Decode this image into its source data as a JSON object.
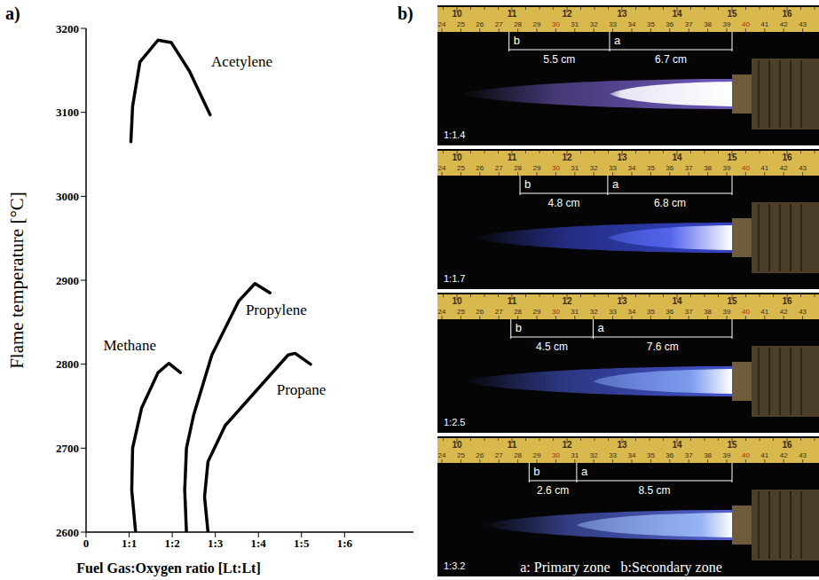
{
  "chart_data": {
    "type": "line",
    "title": "a)",
    "xlabel": "Fuel Gas:Oxygen ratio [Lt:Lt]",
    "ylabel": "Flame temperature [°C]",
    "xlim": [
      0,
      7.6
    ],
    "xticks": [
      0,
      {
        "value": 1,
        "label": "1:1"
      },
      {
        "value": 2,
        "label": "1:2"
      },
      {
        "value": 3,
        "label": "1:3"
      },
      {
        "value": 4,
        "label": "1:4"
      },
      {
        "value": 5,
        "label": "1:5"
      },
      {
        "value": 6,
        "label": "1:6"
      }
    ],
    "ylim": [
      2600,
      3200
    ],
    "yticks": [
      2600,
      2700,
      2800,
      2900,
      3000,
      3100,
      3200
    ],
    "grid": false,
    "series": [
      {
        "name": "Acetylene",
        "color": "#000000",
        "x": [
          1.04,
          1.08,
          1.25,
          1.67,
          1.98,
          2.4,
          2.88
        ],
        "values": [
          3065,
          3107,
          3160,
          3186,
          3183,
          3149,
          3097
        ]
      },
      {
        "name": "Methane",
        "color": "#000000",
        "x": [
          1.15,
          1.06,
          1.08,
          1.29,
          1.67,
          1.92,
          2.19
        ],
        "values": [
          2600,
          2650,
          2700,
          2748,
          2790,
          2801,
          2790
        ]
      },
      {
        "name": "Propylene",
        "color": "#000000",
        "x": [
          2.33,
          2.29,
          2.33,
          2.5,
          2.92,
          3.54,
          3.92,
          4.27
        ],
        "values": [
          2600,
          2650,
          2700,
          2740,
          2811,
          2875,
          2896,
          2885
        ]
      },
      {
        "name": "Propane",
        "color": "#000000",
        "x": [
          2.83,
          2.75,
          2.83,
          3.23,
          3.96,
          4.69,
          4.85,
          5.21
        ],
        "values": [
          2600,
          2642,
          2684,
          2727,
          2769,
          2811,
          2813,
          2800
        ]
      }
    ]
  },
  "photo_panel": {
    "title": "b)",
    "ruler": {
      "inch_ticks": [
        10,
        11,
        12,
        13,
        14,
        15,
        16
      ],
      "cm_ticks": [
        24,
        25,
        26,
        27,
        28,
        29,
        30,
        31,
        32,
        33,
        34,
        35,
        36,
        37,
        38,
        39,
        40,
        41,
        42,
        43
      ]
    },
    "markers": {
      "primary": "a",
      "secondary": "b"
    },
    "key": "a: Primary zone   b:Secondary zone",
    "flames": [
      {
        "ratio": "1:1.4",
        "secondary": {
          "value": 5.5,
          "label": "5.5 cm"
        },
        "primary": {
          "value": 6.7,
          "label": "6.7 cm"
        }
      },
      {
        "ratio": "1:1.7",
        "secondary": {
          "value": 4.8,
          "label": "4.8 cm"
        },
        "primary": {
          "value": 6.8,
          "label": "6.8 cm"
        }
      },
      {
        "ratio": "1:2.5",
        "secondary": {
          "value": 4.5,
          "label": "4.5 cm"
        },
        "primary": {
          "value": 7.6,
          "label": "7.6 cm"
        }
      },
      {
        "ratio": "1:3.2",
        "secondary": {
          "value": 2.6,
          "label": "2.6 cm"
        },
        "primary": {
          "value": 8.5,
          "label": "8.5 cm"
        }
      }
    ]
  }
}
